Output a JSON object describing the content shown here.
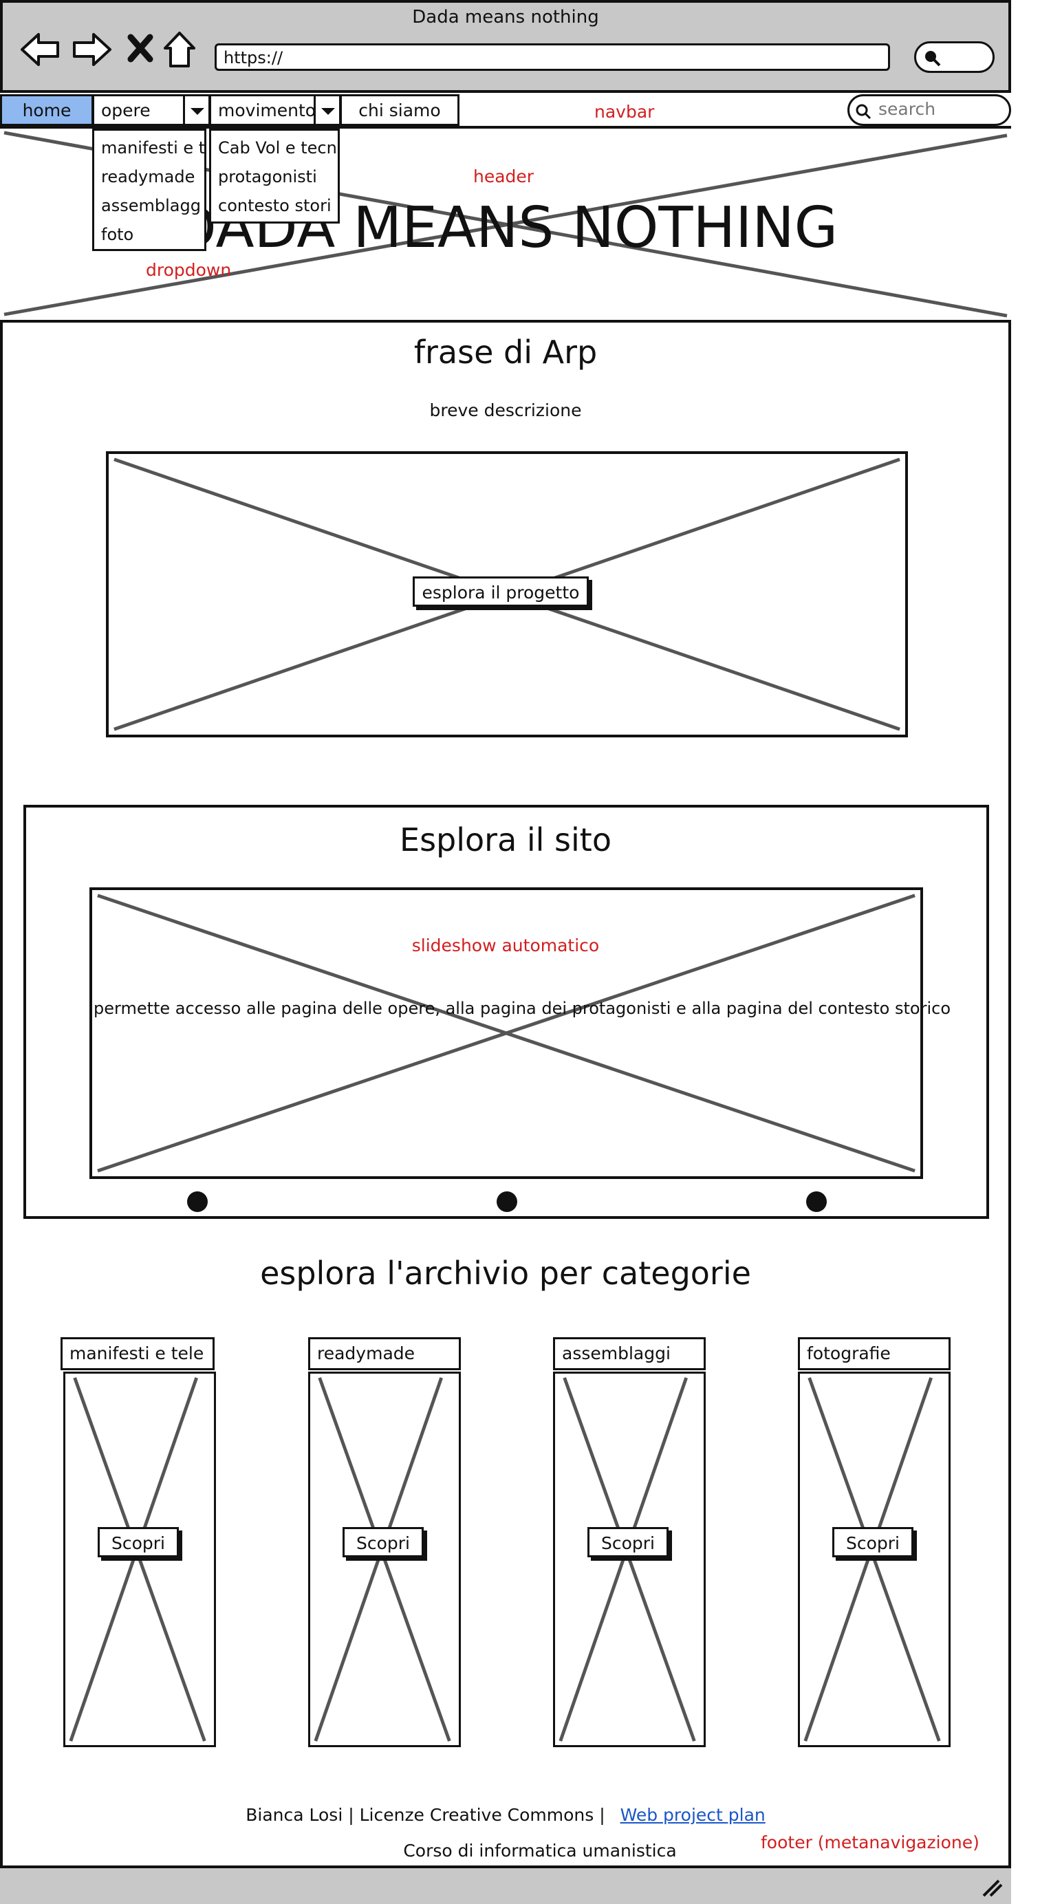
{
  "window": {
    "title": "Dada means nothing",
    "url": "https://"
  },
  "navbar": {
    "items": [
      {
        "label": "home"
      },
      {
        "label": "opere"
      },
      {
        "label": "movimento"
      },
      {
        "label": "chi siamo"
      }
    ],
    "annotation": "navbar",
    "search_placeholder": "search"
  },
  "dropdowns": {
    "opere": [
      "manifesti e t",
      "readymade",
      "assemblagg",
      "foto"
    ],
    "movimento": [
      "Cab Vol e tecn",
      "protagonisti",
      "contesto stori"
    ],
    "annotation": "dropdown"
  },
  "header": {
    "annotation": "header",
    "title": "DADA MEANS NOTHING"
  },
  "intro": {
    "heading": "frase di Arp",
    "description": "breve descrizione",
    "button": "esplora il progetto"
  },
  "explore": {
    "heading": "Esplora il sito",
    "annotation": "slideshow automatico",
    "text": "permette accesso alle pagina delle opere, alla pagina dei protagonisti e alla pagina del contesto storico"
  },
  "archive": {
    "heading": "esplora l'archivio per categorie",
    "categories": [
      {
        "label": "manifesti e tele",
        "button": "Scopri"
      },
      {
        "label": "readymade",
        "button": "Scopri"
      },
      {
        "label": "assemblaggi",
        "button": "Scopri"
      },
      {
        "label": "fotografie",
        "button": "Scopri"
      }
    ]
  },
  "footer": {
    "credits": "Bianca Losi | Licenze Creative Commons |",
    "link": "Web project plan",
    "course": "Corso di informatica umanistica",
    "annotation": "footer (metanavigazione)"
  },
  "colors": {
    "nav_active": "#8fb8f0",
    "annotation_red": "#d21f1f",
    "link_blue": "#1a56c9",
    "chrome_gray": "#c8c8c8"
  }
}
